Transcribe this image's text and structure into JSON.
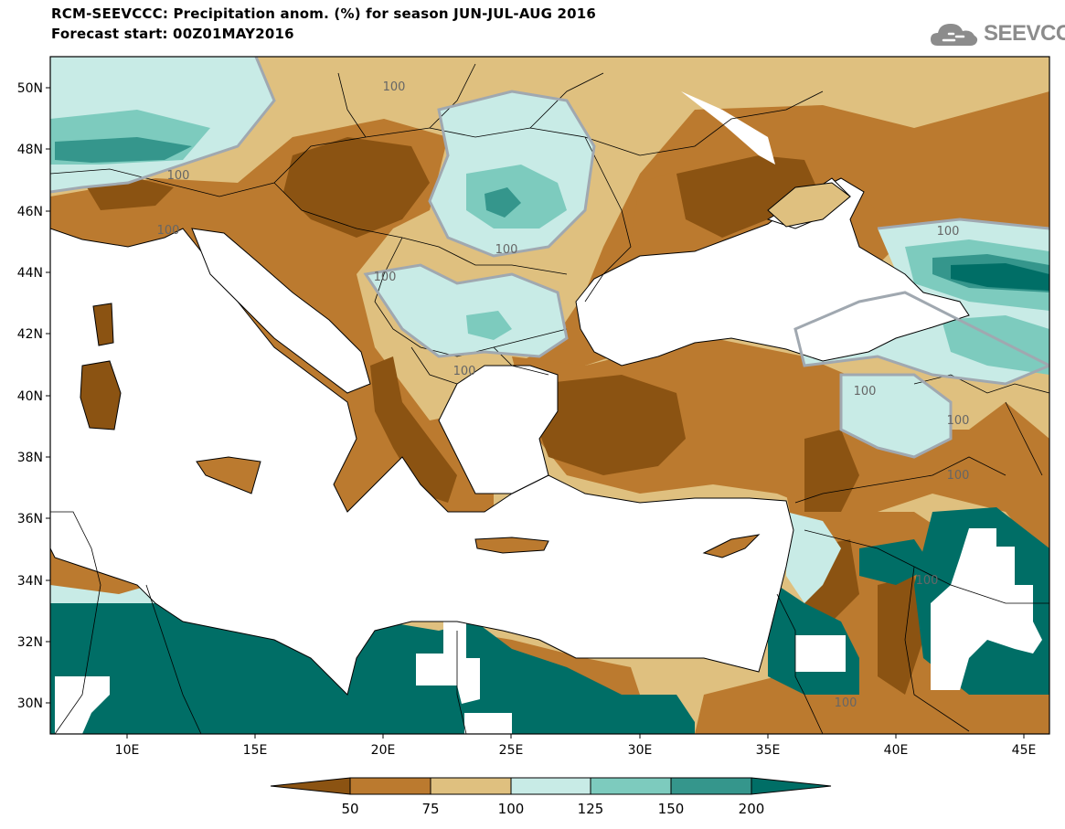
{
  "header": {
    "title_line1": "RCM-SEEVCCC: Precipitation anom. (%) for season JUN-JUL-AUG 2016",
    "title_line2": "Forecast start: 00Z01MAY2016"
  },
  "logo": {
    "text": "SEEVCCC",
    "icon": "cloud-logo-icon"
  },
  "map": {
    "lon_range": [
      7,
      46
    ],
    "lat_range": [
      29,
      51
    ],
    "lat_ticks": [
      "50N",
      "48N",
      "46N",
      "44N",
      "42N",
      "40N",
      "38N",
      "36N",
      "34N",
      "32N",
      "30N"
    ],
    "lon_ticks": [
      "10E",
      "15E",
      "20E",
      "25E",
      "30E",
      "35E",
      "40E",
      "45E"
    ],
    "contour_labels": [
      "100",
      "100",
      "100",
      "100",
      "100",
      "100",
      "100",
      "100",
      "100",
      "100",
      "100",
      "100"
    ]
  },
  "legend": {
    "colors": [
      "#8b5312",
      "#bb7a2f",
      "#dfc07f",
      "#c8ebe6",
      "#7dcbbe",
      "#35968c",
      "#006e66"
    ],
    "labels": [
      "50",
      "75",
      "100",
      "125",
      "150",
      "200"
    ]
  },
  "colors": {
    "below50": "#8b5312",
    "50to75": "#bb7a2f",
    "75to100": "#dfc07f",
    "100to125": "#c8ebe6",
    "125to150": "#7dcbbe",
    "150to200": "#35968c",
    "above200": "#006e66",
    "sea": "#ffffff"
  }
}
